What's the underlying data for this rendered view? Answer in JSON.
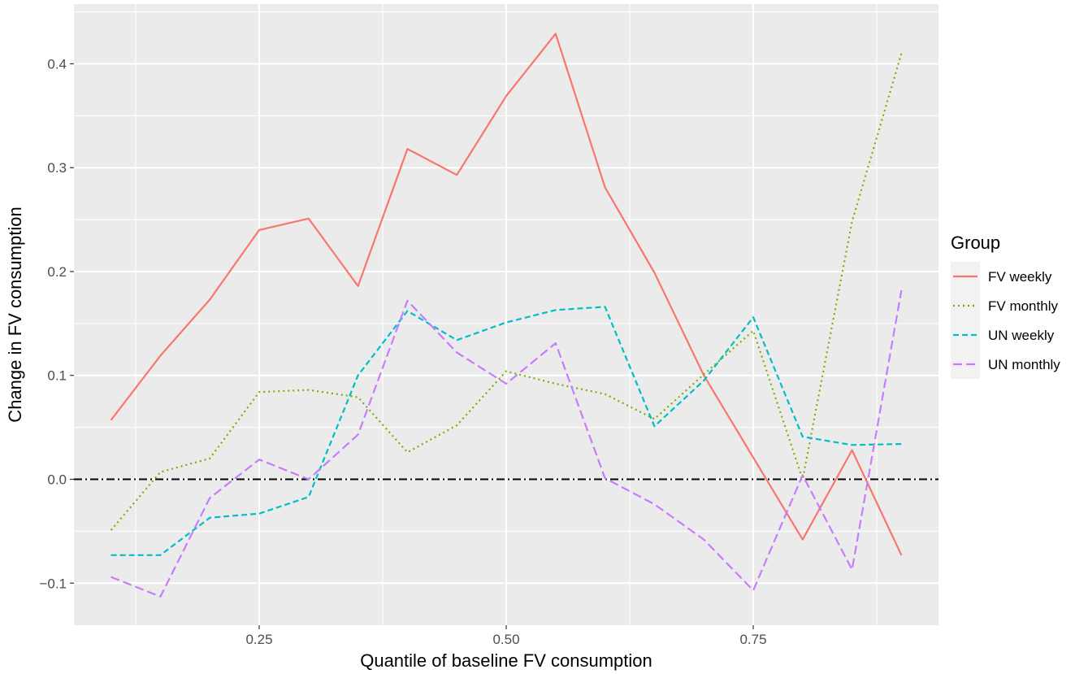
{
  "chart_data": {
    "type": "line",
    "xlabel": "Quantile of baseline FV consumption",
    "ylabel": "Change in FV consumption",
    "xlim": [
      0.0625,
      0.9375
    ],
    "ylim": [
      -0.1405,
      0.4575
    ],
    "x_ticks": [
      0.25,
      0.5,
      0.75
    ],
    "x_tick_labels": [
      "0.25",
      "0.50",
      "0.75"
    ],
    "y_ticks": [
      -0.1,
      0.0,
      0.1,
      0.2,
      0.3,
      0.4
    ],
    "y_tick_labels": [
      "−0.1",
      "0.0",
      "0.1",
      "0.2",
      "0.3",
      "0.4"
    ],
    "grid": true,
    "legend_position": "right",
    "legend_title": "Group",
    "reference_line": {
      "y": 0,
      "style": "dash-dot",
      "color": "#000000"
    },
    "x": [
      0.1,
      0.15,
      0.2,
      0.25,
      0.3,
      0.35,
      0.4,
      0.45,
      0.5,
      0.55,
      0.6,
      0.65,
      0.7,
      0.75,
      0.8,
      0.85,
      0.9
    ],
    "series": [
      {
        "name": "FV weekly",
        "color": "#F8766D",
        "dash": "solid",
        "values": [
          0.057,
          0.119,
          0.173,
          0.24,
          0.251,
          0.186,
          0.318,
          0.293,
          0.369,
          0.429,
          0.281,
          0.199,
          0.1,
          0.021,
          -0.058,
          0.028,
          -0.073
        ]
      },
      {
        "name": "FV monthly",
        "color": "#7CAE00",
        "dash": "dotted",
        "values": [
          -0.049,
          0.007,
          0.02,
          0.084,
          0.086,
          0.079,
          0.026,
          0.052,
          0.104,
          0.092,
          0.082,
          0.058,
          0.101,
          0.143,
          0.0,
          0.248,
          0.41
        ]
      },
      {
        "name": "UN weekly",
        "color": "#00BFC4",
        "dash": "dashed",
        "values": [
          -0.073,
          -0.073,
          -0.037,
          -0.033,
          -0.017,
          0.1,
          0.162,
          0.134,
          0.151,
          0.163,
          0.166,
          0.051,
          0.095,
          0.156,
          0.041,
          0.033,
          0.034
        ]
      },
      {
        "name": "UN monthly",
        "color": "#C77CFF",
        "dash": "longdash",
        "values": [
          -0.094,
          -0.113,
          -0.018,
          0.019,
          0.0,
          0.043,
          0.172,
          0.122,
          0.092,
          0.131,
          0.001,
          -0.024,
          -0.058,
          -0.107,
          0.004,
          -0.087,
          0.182
        ]
      }
    ]
  }
}
